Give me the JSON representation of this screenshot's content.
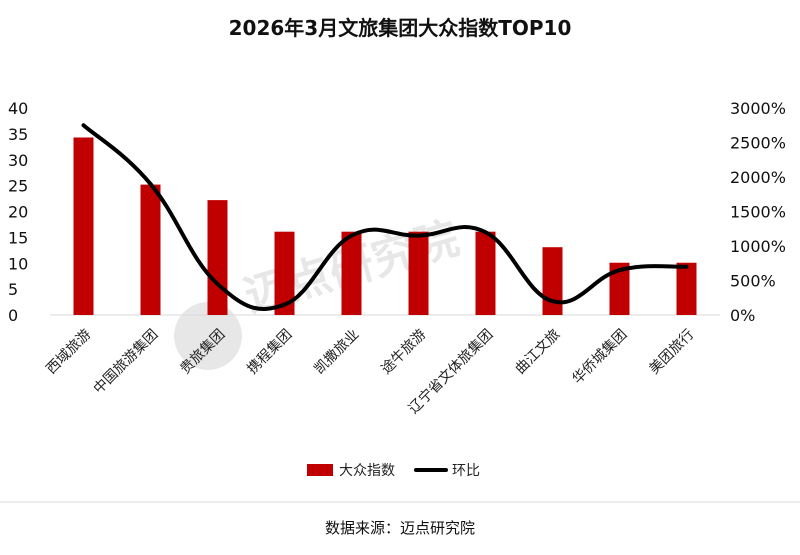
{
  "chart_data": {
    "type": "bar",
    "title": "2026年3月文旅集团大众指数TOP10",
    "categories": [
      "西域旅游",
      "中国旅游集团",
      "贵旅集团",
      "携程集团",
      "凯撒旅业",
      "途牛旅游",
      "辽宁省文体旅集团",
      "曲江文旅",
      "华侨城集团",
      "美团旅行"
    ],
    "series": [
      {
        "name": "大众指数",
        "type": "bar",
        "axis": "left",
        "color": "#C00000",
        "values": [
          34.3,
          25.2,
          22.2,
          16.1,
          16.1,
          16.1,
          16.1,
          13.1,
          10.1,
          10.1
        ]
      },
      {
        "name": "环比",
        "type": "line",
        "axis": "right",
        "color": "#000000",
        "values": [
          2750,
          1900,
          450,
          150,
          1150,
          1150,
          1200,
          200,
          650,
          700
        ]
      }
    ],
    "y_left": {
      "min": 0,
      "max": 40,
      "ticks": [
        "0",
        "5",
        "10",
        "15",
        "20",
        "25",
        "30",
        "35",
        "40"
      ]
    },
    "y_right": {
      "min": 0,
      "max": 3000,
      "ticks": [
        "0%",
        "500%",
        "1000%",
        "1500%",
        "2000%",
        "2500%",
        "3000%"
      ]
    },
    "grid": false,
    "legend": "bottom",
    "watermark": "迈点研究院"
  },
  "footer": {
    "source": "数据来源：迈点研究院"
  }
}
